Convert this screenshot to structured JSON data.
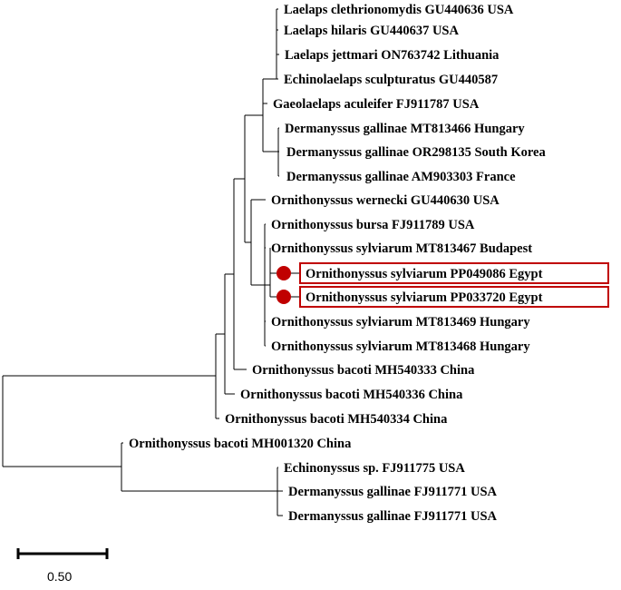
{
  "colors": {
    "branch": "#000000",
    "highlight_box": "#c00000",
    "marker": "#c00000"
  },
  "tips": [
    {
      "label": "Laelaps clethrionomydis GU440636 USA",
      "highlighted": false
    },
    {
      "label": "Laelaps hilaris GU440637 USA",
      "highlighted": false
    },
    {
      "label": "Laelaps jettmari ON763742 Lithuania",
      "highlighted": false
    },
    {
      "label": "Echinolaelaps sculpturatus GU440587",
      "highlighted": false
    },
    {
      "label": "Gaeolaelaps aculeifer FJ911787 USA",
      "highlighted": false
    },
    {
      "label": "Dermanyssus gallinae MT813466 Hungary",
      "highlighted": false
    },
    {
      "label": "Dermanyssus gallinae OR298135 South Korea",
      "highlighted": false
    },
    {
      "label": "Dermanyssus gallinae AM903303 France",
      "highlighted": false
    },
    {
      "label": "Ornithonyssus wernecki GU440630 USA",
      "highlighted": false
    },
    {
      "label": "Ornithonyssus bursa FJ911789 USA",
      "highlighted": false
    },
    {
      "label": "Ornithonyssus sylviarum MT813467 Budapest",
      "highlighted": false
    },
    {
      "label": "Ornithonyssus sylviarum PP049086 Egypt",
      "highlighted": true
    },
    {
      "label": "Ornithonyssus sylviarum PP033720 Egypt",
      "highlighted": true
    },
    {
      "label": "Ornithonyssus sylviarum MT813469 Hungary",
      "highlighted": false
    },
    {
      "label": "Ornithonyssus sylviarum MT813468 Hungary",
      "highlighted": false
    },
    {
      "label": "Ornithonyssus bacoti MH540333 China",
      "highlighted": false
    },
    {
      "label": "Ornithonyssus bacoti MH540336 China",
      "highlighted": false
    },
    {
      "label": "Ornithonyssus bacoti MH540334 China",
      "highlighted": false
    },
    {
      "label": "Ornithonyssus bacoti MH001320 China",
      "highlighted": false
    },
    {
      "label": "Echinonyssus sp. FJ911775 USA",
      "highlighted": false
    },
    {
      "label": "Dermanyssus gallinae FJ911771 USA",
      "highlighted": false
    },
    {
      "label": "Dermanyssus gallinae FJ911771 USA",
      "highlighted": false
    }
  ],
  "scale_bar": {
    "label": "0.50"
  }
}
